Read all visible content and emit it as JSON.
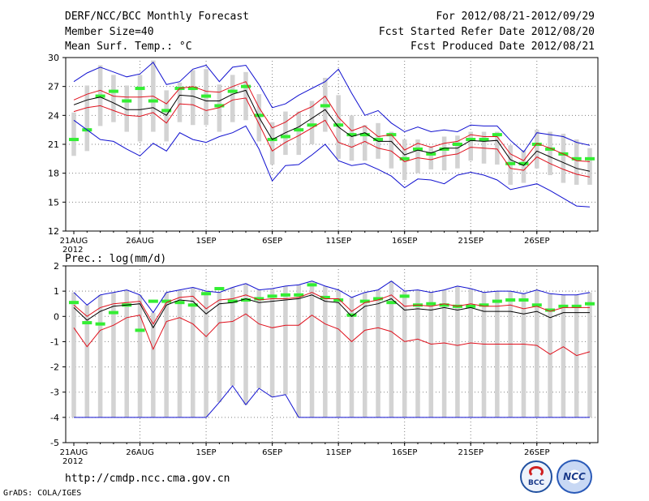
{
  "header": {
    "title": "DERF/NCC/BCC Monthly Forecast",
    "member_size": "Member Size=40",
    "variable": "Mean Surf. Temp.: °C",
    "forecast_period": "For 2012/08/21-2012/09/29",
    "started_refer": "Fcst Started Refer Date 2012/08/20",
    "produced": "Fcst Produced Date 2012/08/21"
  },
  "footer": {
    "url": "http://cmdp.ncc.cma.gov.cn",
    "credit": "GrADS: COLA/IGES",
    "logo_bcc": "BCC",
    "logo_ncc": "NCC"
  },
  "colors": {
    "ensemble_mean": "#000000",
    "one_sigma": "#e0101c",
    "extreme": "#1010d0",
    "observed": "#33ee33",
    "box": "#d3d3d3"
  },
  "chart_data": [
    {
      "type": "line",
      "title": "Mean Surf. Temp.: °C",
      "xlabel": "",
      "ylabel": "",
      "day_count": 40,
      "ylim": [
        12,
        30
      ],
      "yticks": [
        12,
        15,
        18,
        21,
        24,
        27,
        30
      ],
      "xticks": [
        {
          "day": 0,
          "label": "21AUG"
        },
        {
          "day": 5,
          "label": "26AUG"
        },
        {
          "day": 10,
          "label": "1SEP"
        },
        {
          "day": 15,
          "label": "6SEP"
        },
        {
          "day": 20,
          "label": "11SEP"
        },
        {
          "day": 25,
          "label": "16SEP"
        },
        {
          "day": 30,
          "label": "21SEP"
        },
        {
          "day": 35,
          "label": "26SEP"
        }
      ],
      "year_label": "2012",
      "grid": true,
      "series": [
        {
          "name": "Ensemble Max",
          "color": "#1010d0",
          "values": [
            27.5,
            28.4,
            29.0,
            28.5,
            28.0,
            28.3,
            29.5,
            27.2,
            27.5,
            28.8,
            29.2,
            27.5,
            29.0,
            29.2,
            27.2,
            24.8,
            25.2,
            26.1,
            26.8,
            27.5,
            28.8,
            26.3,
            24.0,
            24.5,
            23.2,
            22.3,
            22.8,
            22.3,
            22.5,
            22.3,
            23.0,
            22.9,
            22.9,
            21.4,
            20.2,
            22.2,
            22.0,
            21.8,
            21.2,
            20.9
          ]
        },
        {
          "name": "Ensemble Mean + 1 sigma",
          "color": "#e0101c",
          "values": [
            25.6,
            26.2,
            26.6,
            26.0,
            25.9,
            25.9,
            26.0,
            25.2,
            26.8,
            27.0,
            26.5,
            26.4,
            27.0,
            27.5,
            24.8,
            22.7,
            23.3,
            24.3,
            24.9,
            26.0,
            23.8,
            22.4,
            22.9,
            21.8,
            22.0,
            20.4,
            21.1,
            20.7,
            21.1,
            21.3,
            22.0,
            21.8,
            21.8,
            20.0,
            19.3,
            21.1,
            20.6,
            20.0,
            19.3,
            19.2
          ]
        },
        {
          "name": "Ensemble Mean",
          "color": "#000000",
          "values": [
            25.1,
            25.6,
            25.9,
            25.3,
            24.6,
            24.6,
            24.8,
            24.0,
            26.1,
            26.0,
            25.5,
            25.5,
            26.2,
            26.6,
            23.8,
            21.5,
            22.2,
            22.8,
            23.7,
            24.6,
            22.8,
            21.8,
            22.2,
            21.3,
            21.3,
            19.9,
            20.4,
            20.1,
            20.6,
            20.6,
            21.4,
            21.3,
            21.4,
            19.4,
            18.8,
            20.3,
            19.7,
            19.1,
            18.5,
            18.2
          ]
        },
        {
          "name": "Ensemble Mean - 1 sigma",
          "color": "#e0101c",
          "values": [
            24.4,
            24.8,
            25.0,
            24.5,
            24.0,
            23.9,
            24.3,
            23.2,
            25.2,
            25.1,
            24.5,
            24.8,
            25.6,
            25.8,
            23.1,
            20.3,
            21.2,
            21.9,
            22.7,
            23.5,
            21.2,
            20.7,
            21.3,
            20.6,
            20.3,
            19.2,
            19.6,
            19.4,
            19.8,
            20.0,
            20.7,
            20.6,
            20.5,
            18.5,
            18.3,
            19.7,
            19.0,
            18.4,
            17.9,
            17.6
          ]
        },
        {
          "name": "Ensemble Min",
          "color": "#1010d0",
          "values": [
            23.5,
            22.5,
            21.5,
            21.3,
            20.5,
            19.8,
            21.1,
            20.3,
            22.2,
            21.5,
            21.2,
            21.8,
            22.2,
            22.9,
            20.5,
            17.2,
            18.8,
            18.9,
            19.9,
            21.0,
            19.3,
            18.8,
            19.0,
            18.4,
            17.7,
            16.5,
            17.4,
            17.3,
            16.9,
            17.8,
            18.1,
            17.8,
            17.3,
            16.3,
            16.6,
            16.9,
            16.2,
            15.4,
            14.6,
            14.5
          ]
        }
      ],
      "observed": [
        21.5,
        22.5,
        26.0,
        26.5,
        25.5,
        26.8,
        25.5,
        24.5,
        26.8,
        26.8,
        26.0,
        25.0,
        26.5,
        27.0,
        24.0,
        21.5,
        21.8,
        22.5,
        23.0,
        25.0,
        23.0,
        22.0,
        22.0,
        21.5,
        22.0,
        19.5,
        20.5,
        20.0,
        20.5,
        21.0,
        21.5,
        21.5,
        22.0,
        19.0,
        19.0,
        21.0,
        20.5,
        20.0,
        19.5,
        19.5
      ],
      "box_low": [
        19.8,
        20.3,
        22.9,
        23.3,
        22.3,
        21.3,
        22.3,
        21.3,
        23.3,
        23.0,
        23.0,
        22.3,
        23.3,
        23.5,
        21.3,
        18.9,
        19.9,
        19.9,
        21.0,
        22.3,
        19.5,
        19.3,
        19.3,
        19.5,
        18.5,
        17.3,
        18.0,
        18.4,
        18.3,
        18.5,
        19.3,
        19.0,
        18.9,
        16.8,
        17.0,
        18.5,
        17.8,
        17.0,
        16.8,
        16.8
      ],
      "box_high": [
        24.3,
        27.1,
        29.2,
        28.2,
        27.1,
        28.2,
        29.7,
        26.6,
        27.4,
        28.7,
        28.8,
        27.2,
        28.2,
        28.5,
        26.2,
        23.3,
        24.4,
        24.4,
        25.5,
        27.9,
        26.1,
        24.0,
        23.0,
        23.2,
        22.3,
        21.5,
        21.5,
        20.8,
        21.8,
        21.9,
        22.3,
        22.3,
        22.3,
        20.9,
        20.4,
        22.5,
        22.3,
        22.1,
        21.5,
        20.6
      ]
    },
    {
      "type": "line",
      "title": "Prec.: log(mm/d)",
      "xlabel": "",
      "ylabel": "",
      "day_count": 40,
      "ylim": [
        -5,
        2
      ],
      "yticks": [
        -5,
        -4,
        -3,
        -2,
        -1,
        0,
        1,
        2
      ],
      "xticks": [
        {
          "day": 0,
          "label": "21AUG"
        },
        {
          "day": 5,
          "label": "26AUG"
        },
        {
          "day": 10,
          "label": "1SEP"
        },
        {
          "day": 15,
          "label": "6SEP"
        },
        {
          "day": 20,
          "label": "11SEP"
        },
        {
          "day": 25,
          "label": "16SEP"
        },
        {
          "day": 30,
          "label": "21SEP"
        },
        {
          "day": 35,
          "label": "26SEP"
        }
      ],
      "year_label": "2012",
      "grid": true,
      "series": [
        {
          "name": "Ensemble Max",
          "color": "#1010d0",
          "values": [
            0.95,
            0.45,
            0.85,
            0.95,
            1.05,
            0.85,
            0.15,
            0.95,
            1.05,
            1.15,
            1.0,
            0.95,
            1.15,
            1.3,
            1.05,
            1.1,
            1.2,
            1.25,
            1.4,
            1.2,
            1.05,
            0.75,
            0.95,
            1.05,
            1.4,
            1.0,
            1.05,
            0.95,
            1.05,
            1.2,
            1.1,
            0.95,
            1.0,
            1.0,
            0.9,
            1.05,
            0.9,
            0.85,
            0.85,
            0.95
          ]
        },
        {
          "name": "Ensemble Mean + 1 sigma",
          "color": "#e0101c",
          "values": [
            0.45,
            0.0,
            0.35,
            0.5,
            0.55,
            0.6,
            -0.3,
            0.55,
            0.75,
            0.8,
            0.3,
            0.65,
            0.7,
            0.85,
            0.65,
            0.7,
            0.7,
            0.75,
            0.95,
            0.7,
            0.7,
            0.2,
            0.55,
            0.65,
            0.85,
            0.4,
            0.45,
            0.4,
            0.5,
            0.4,
            0.5,
            0.4,
            0.4,
            0.45,
            0.3,
            0.4,
            0.2,
            0.35,
            0.35,
            0.35
          ]
        },
        {
          "name": "Ensemble Mean",
          "color": "#000000",
          "values": [
            0.35,
            -0.15,
            0.2,
            0.4,
            0.45,
            0.5,
            -0.45,
            0.45,
            0.65,
            0.6,
            0.1,
            0.5,
            0.55,
            0.7,
            0.55,
            0.6,
            0.65,
            0.7,
            0.85,
            0.6,
            0.55,
            0.0,
            0.4,
            0.5,
            0.7,
            0.25,
            0.3,
            0.25,
            0.35,
            0.25,
            0.35,
            0.2,
            0.2,
            0.2,
            0.1,
            0.2,
            -0.05,
            0.15,
            0.15,
            0.15
          ]
        },
        {
          "name": "Ensemble Mean - 1 sigma",
          "color": "#e0101c",
          "values": [
            -0.45,
            -1.2,
            -0.55,
            -0.35,
            -0.05,
            0.05,
            -1.3,
            -0.2,
            -0.05,
            -0.3,
            -0.8,
            -0.25,
            -0.2,
            0.1,
            -0.3,
            -0.45,
            -0.35,
            -0.35,
            0.05,
            -0.3,
            -0.5,
            -1.0,
            -0.55,
            -0.45,
            -0.6,
            -1.0,
            -0.9,
            -1.1,
            -1.05,
            -1.15,
            -1.05,
            -1.1,
            -1.1,
            -1.1,
            -1.1,
            -1.15,
            -1.5,
            -1.2,
            -1.55,
            -1.4
          ]
        },
        {
          "name": "Ensemble Min",
          "color": "#1010d0",
          "values": [
            -4.0,
            -4.0,
            -4.0,
            -4.0,
            -4.0,
            -4.0,
            -4.0,
            -4.0,
            -4.0,
            -4.0,
            -4.0,
            -3.4,
            -2.75,
            -3.5,
            -2.85,
            -3.2,
            -3.1,
            -4.0,
            -4.0,
            -4.0,
            -4.0,
            -4.0,
            -4.0,
            -4.0,
            -4.0,
            -4.0,
            -4.0,
            -4.0,
            -4.0,
            -4.0,
            -4.0,
            -4.0,
            -4.0,
            -4.0,
            -4.0,
            -4.0,
            -4.0,
            -4.0,
            -4.0,
            -4.0
          ]
        }
      ],
      "observed": [
        0.55,
        -0.25,
        -0.3,
        0.15,
        0.45,
        -0.55,
        0.6,
        0.6,
        0.55,
        0.45,
        0.9,
        1.1,
        0.6,
        0.65,
        0.7,
        0.8,
        0.85,
        0.85,
        1.25,
        0.75,
        0.65,
        0.05,
        0.6,
        0.7,
        0.55,
        0.8,
        0.45,
        0.5,
        0.45,
        0.4,
        0.4,
        0.45,
        0.6,
        0.65,
        0.65,
        0.45,
        0.25,
        0.4,
        0.4,
        0.5
      ]
    }
  ]
}
